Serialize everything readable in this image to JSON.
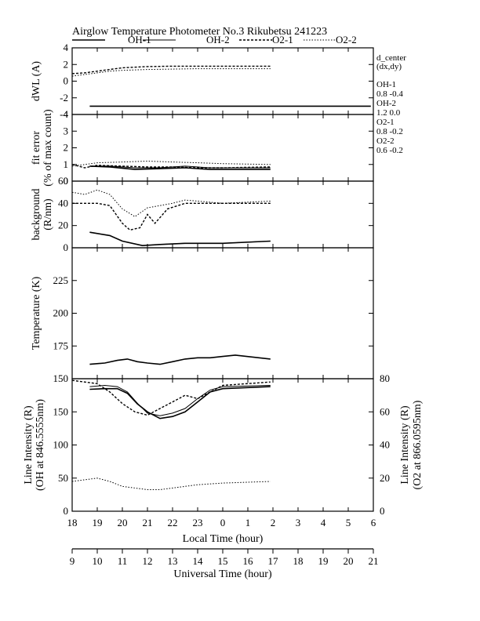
{
  "title": "Airglow Temperature Photometer No.3  Rikubetsu    241223",
  "legend": [
    {
      "name": "OH-1",
      "style": "solid"
    },
    {
      "name": "OH-2",
      "style": "solid-thin"
    },
    {
      "name": "O2-1",
      "style": "dashed"
    },
    {
      "name": "O2-2",
      "style": "dotted"
    }
  ],
  "side_note": {
    "header": [
      "d_center",
      "(dx,dy)"
    ],
    "entries": [
      {
        "name": "OH-1",
        "value": "0.8  -0.4"
      },
      {
        "name": "OH-2",
        "value": "1.2  0.0"
      },
      {
        "name": "O2-1",
        "value": "0.8  -0.2"
      },
      {
        "name": "O2-2",
        "value": "0.6  -0.2"
      }
    ]
  },
  "x_axis_local": {
    "label": "Local Time (hour)",
    "ticks": [
      "18",
      "19",
      "20",
      "21",
      "22",
      "23",
      "0",
      "1",
      "2",
      "3",
      "4",
      "5",
      "6"
    ]
  },
  "x_axis_ut": {
    "label": "Universal Time (hour)",
    "ticks": [
      "9",
      "10",
      "11",
      "12",
      "13",
      "14",
      "15",
      "16",
      "17",
      "18",
      "19",
      "20",
      "21"
    ]
  },
  "chart_data": [
    {
      "type": "line",
      "ylabel": "dWL (A)",
      "ylim": [
        -4,
        4
      ],
      "yticks": [
        "-4",
        "-2",
        "0",
        "2",
        "4"
      ],
      "x_range": [
        18,
        30
      ],
      "series": [
        {
          "name": "OH-1",
          "x": [
            18.7,
            29.9
          ],
          "y": [
            -3.0,
            -3.0
          ]
        },
        {
          "name": "O2-1",
          "x": [
            18.0,
            18.5,
            19.0,
            19.5,
            20.0,
            21.0,
            22.0,
            23.0,
            24.0,
            25.9
          ],
          "y": [
            0.9,
            1.0,
            1.2,
            1.4,
            1.6,
            1.75,
            1.8,
            1.8,
            1.8,
            1.8
          ]
        },
        {
          "name": "O2-2",
          "x": [
            18.0,
            18.5,
            19.0,
            19.5,
            20.0,
            21.0,
            22.0,
            23.0,
            24.0,
            25.9
          ],
          "y": [
            0.6,
            0.8,
            1.0,
            1.2,
            1.3,
            1.4,
            1.45,
            1.5,
            1.5,
            1.5
          ]
        }
      ]
    },
    {
      "type": "line",
      "ylabel": "fit error",
      "ylabel2": "(% of max count)",
      "ylim": [
        0,
        4
      ],
      "yticks": [
        "0",
        "1",
        "2",
        "3",
        "4"
      ],
      "series": [
        {
          "name": "OH-1",
          "x": [
            18.7,
            19.5,
            20.5,
            21.5,
            22.5,
            23.5,
            24.0,
            25.9
          ],
          "y": [
            0.9,
            0.85,
            0.7,
            0.75,
            0.8,
            0.7,
            0.7,
            0.7
          ]
        },
        {
          "name": "OH-2",
          "x": [
            18.7,
            19.5,
            20.5,
            21.5,
            22.5,
            23.5,
            24.0,
            25.9
          ],
          "y": [
            0.9,
            0.9,
            0.8,
            0.8,
            0.9,
            0.8,
            0.8,
            0.8
          ]
        },
        {
          "name": "O2-1",
          "x": [
            18.0,
            18.5,
            19.0,
            20.0,
            21.0,
            22.0,
            23.0,
            24.0,
            25.9
          ],
          "y": [
            1.0,
            0.8,
            0.95,
            0.9,
            0.85,
            0.85,
            0.8,
            0.8,
            0.85
          ]
        },
        {
          "name": "O2-2",
          "x": [
            18.0,
            18.5,
            19.0,
            20.0,
            21.0,
            22.0,
            23.0,
            24.0,
            25.9
          ],
          "y": [
            0.9,
            1.0,
            1.1,
            1.15,
            1.2,
            1.15,
            1.1,
            1.05,
            1.0
          ]
        }
      ]
    },
    {
      "type": "line",
      "ylabel": "background",
      "ylabel2": "(R/nm)",
      "ylim": [
        0,
        60
      ],
      "yticks": [
        "0",
        "20",
        "40",
        "60"
      ],
      "series": [
        {
          "name": "OH-1",
          "x": [
            18.7,
            19.5,
            20.0,
            20.8,
            21.5,
            22.5,
            23.5,
            24.0,
            25.9
          ],
          "y": [
            14,
            11,
            6,
            2,
            3,
            4,
            4,
            4,
            6
          ]
        },
        {
          "name": "OH-2",
          "x": [
            18.7,
            19.5,
            20.0,
            20.8,
            21.5,
            22.5,
            23.5,
            24.0,
            25.9
          ],
          "y": [
            14,
            11,
            6,
            2,
            3,
            4,
            4,
            4,
            6
          ]
        },
        {
          "name": "O2-1",
          "x": [
            18.0,
            19.0,
            19.5,
            20.0,
            20.3,
            20.7,
            21.0,
            21.3,
            21.8,
            22.5,
            23.0,
            24.0,
            25.9
          ],
          "y": [
            40,
            40,
            38,
            22,
            16,
            18,
            30,
            22,
            35,
            40,
            40,
            40,
            40
          ]
        },
        {
          "name": "O2-2",
          "x": [
            18.0,
            18.5,
            19.0,
            19.5,
            20.0,
            20.5,
            21.0,
            21.5,
            22.0,
            22.5,
            23.0,
            24.0,
            25.9
          ],
          "y": [
            50,
            48,
            52,
            48,
            35,
            28,
            36,
            38,
            40,
            43,
            42,
            40,
            42
          ]
        }
      ]
    },
    {
      "type": "line",
      "ylabel": "Temperature (K)",
      "ylim": [
        150,
        250
      ],
      "yticks": [
        "150",
        "175",
        "200",
        "225"
      ],
      "series": [
        {
          "name": "OH-1",
          "x": [
            18.7,
            19.3,
            19.8,
            20.2,
            20.6,
            21.0,
            21.5,
            22.0,
            22.5,
            23.0,
            23.5,
            24.0,
            24.5,
            25.9
          ],
          "y": [
            161,
            162,
            164,
            165,
            163,
            162,
            161,
            163,
            165,
            166,
            166,
            167,
            168,
            165
          ]
        }
      ]
    },
    {
      "type": "line",
      "ylabel": "Line Intensity (R)",
      "ylabel2": "(OH at 846.5555nm)",
      "ylabel_right": "Line Intensity (R)",
      "ylabel_right2": "(O2 at 866.0595nm)",
      "ylim": [
        0,
        200
      ],
      "yticks": [
        "0",
        "50",
        "100",
        "150"
      ],
      "ylim_right": [
        0,
        80
      ],
      "yticks_right": [
        "0",
        "20",
        "40",
        "60",
        "80"
      ],
      "series": [
        {
          "name": "OH-1",
          "axis": "left",
          "x": [
            18.7,
            19.3,
            19.8,
            20.2,
            20.6,
            21.0,
            21.5,
            22.0,
            22.5,
            23.0,
            23.5,
            24.0,
            25.9
          ],
          "y": [
            184,
            185,
            185,
            178,
            162,
            150,
            140,
            143,
            150,
            165,
            180,
            185,
            188
          ]
        },
        {
          "name": "OH-2",
          "axis": "left",
          "x": [
            18.7,
            19.3,
            19.8,
            20.2,
            20.6,
            21.0,
            21.5,
            22.0,
            22.5,
            23.0,
            23.5,
            24.0,
            25.9
          ],
          "y": [
            188,
            190,
            188,
            180,
            163,
            148,
            144,
            148,
            155,
            170,
            183,
            188,
            190
          ]
        },
        {
          "name": "O2-1",
          "axis": "right",
          "x": [
            18.0,
            18.5,
            19.0,
            19.5,
            20.0,
            20.5,
            21.0,
            21.5,
            22.0,
            22.5,
            23.0,
            23.5,
            24.0,
            25.9
          ],
          "y": [
            79,
            78,
            77,
            72,
            65,
            60,
            58,
            62,
            66,
            70,
            68,
            72,
            76,
            78
          ]
        },
        {
          "name": "O2-2",
          "axis": "right",
          "x": [
            18.0,
            18.5,
            19.0,
            19.5,
            20.0,
            20.5,
            21.0,
            21.5,
            22.0,
            22.5,
            23.0,
            24.0,
            25.9
          ],
          "y": [
            18,
            19,
            20,
            18,
            15,
            14,
            13,
            13,
            14,
            15,
            16,
            17,
            18
          ]
        }
      ]
    }
  ]
}
